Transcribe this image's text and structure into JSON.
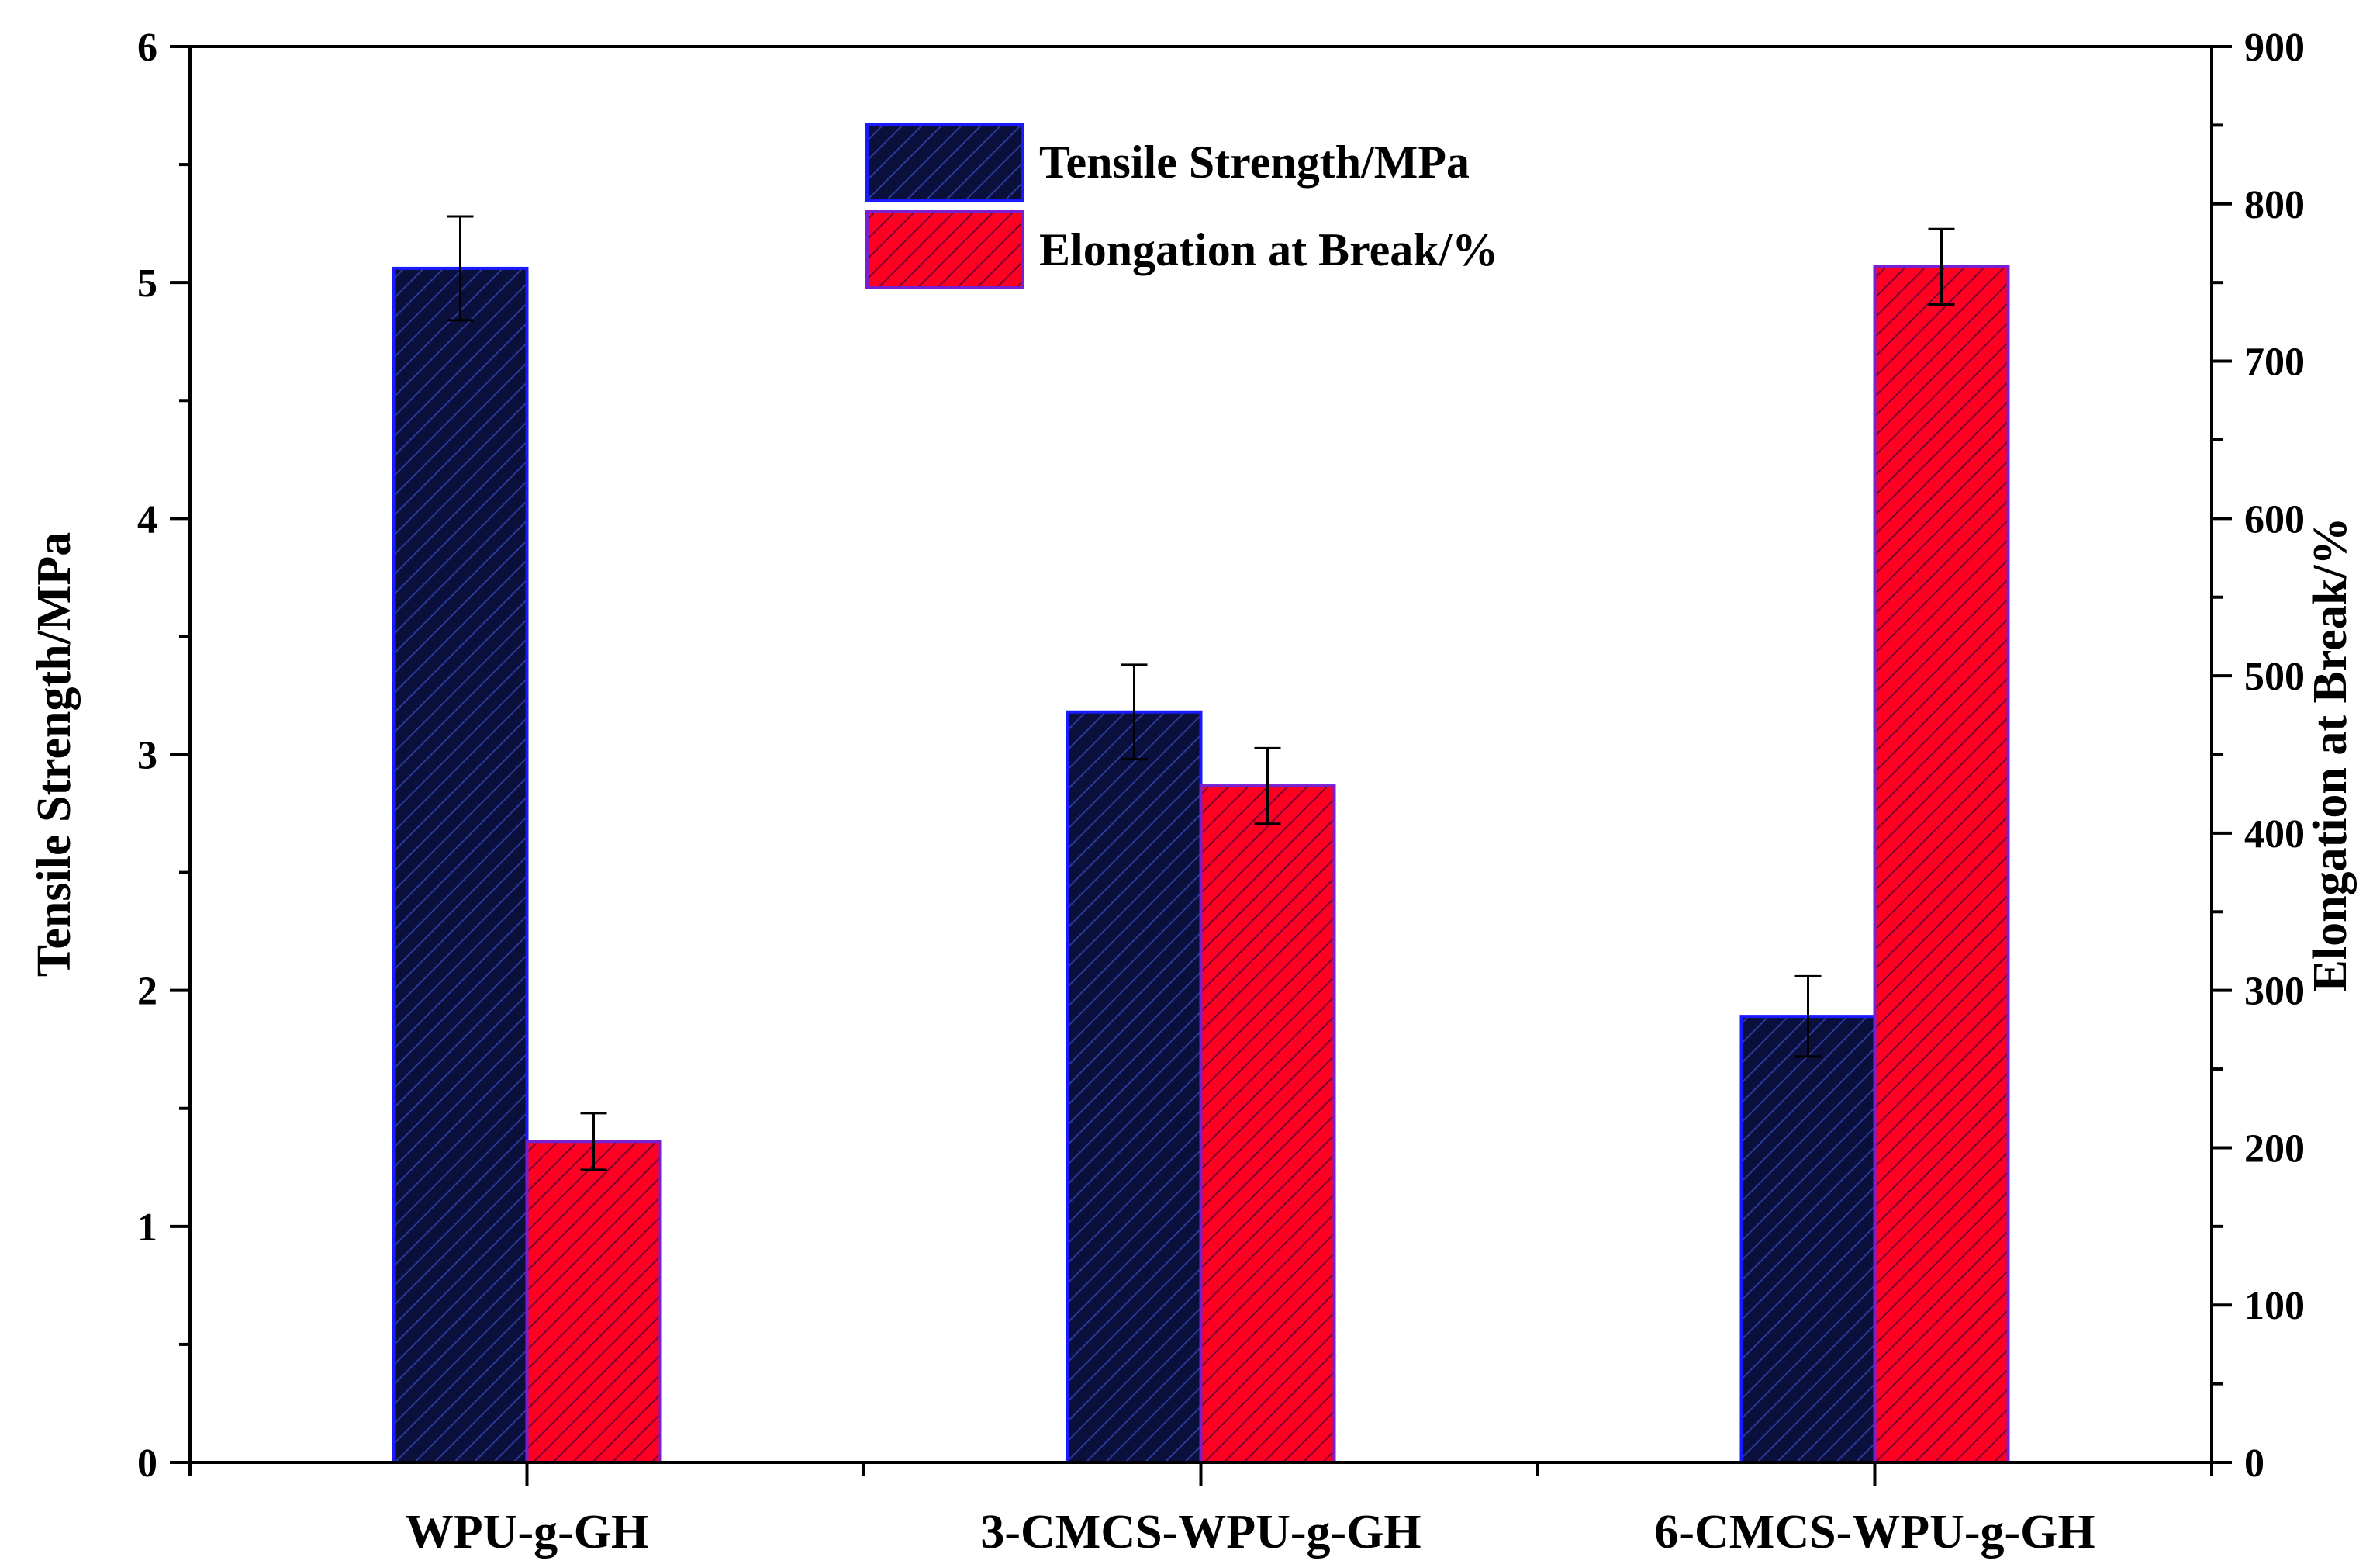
{
  "chart_data": {
    "type": "bar",
    "categories": [
      "WPU-g-GH",
      "3-CMCS-WPU-g-GH",
      "6-CMCS-WPU-g-GH"
    ],
    "series": [
      {
        "name": "Tensile Strength/MPa",
        "axis": "left",
        "values": [
          5.06,
          3.18,
          1.89
        ],
        "errors": [
          0.22,
          0.2,
          0.17
        ],
        "color": "#0a0f3c",
        "hatch_color": "#2a3a9a",
        "edge_color": "#1a1aff"
      },
      {
        "name": "Elongation at Break/%",
        "axis": "right",
        "values": [
          204,
          430,
          760
        ],
        "errors": [
          18,
          24,
          24
        ],
        "color": "#ff0022",
        "hatch_color": "#7a0033",
        "edge_color": "#7a1fd0"
      }
    ],
    "ylabel": "Tensile Strength/MPa",
    "ylabel_right": "Elongation at Break/%",
    "xlabel": "",
    "ylim": [
      0,
      6
    ],
    "ylim_right": [
      0,
      900
    ],
    "yticks": [
      "0",
      "1",
      "2",
      "3",
      "4",
      "5",
      "6"
    ],
    "yticks_right": [
      "0",
      "100",
      "200",
      "300",
      "400",
      "500",
      "600",
      "700",
      "800",
      "900"
    ],
    "grid": false,
    "legend_position": "top-center"
  }
}
